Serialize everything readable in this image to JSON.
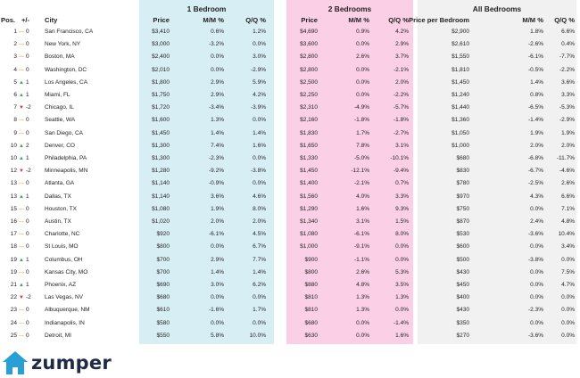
{
  "groups": {
    "one_bedroom": "1 Bedroom",
    "two_bedrooms": "2 Bedrooms",
    "all_bedrooms": "All Bedrooms"
  },
  "headers": {
    "pos": "Pos.",
    "change": "+/-",
    "city": "City",
    "b1_price": "Price",
    "b1_mm": "M/M %",
    "b1_qq": "Q/Q %",
    "b2_price": "Price",
    "b2_mm": "M/M %",
    "b2_qq": "Q/Q %",
    "all_price": "Price per Bedroom",
    "all_mm": "M/M %",
    "all_qq": "Q/Q %"
  },
  "colors": {
    "up": "#3aa756",
    "down": "#d3304d",
    "flat": "#e6a31e",
    "b1_bg": "#d8eef5",
    "b2_bg": "#fbd0e6",
    "all_bg": "#f1f1f1"
  },
  "logo": {
    "icon": "house-icon",
    "text": "zumper"
  },
  "rows": [
    {
      "pos": "1",
      "trend": "flat",
      "chg": "0",
      "city": "San Francisco, CA",
      "b1p": "$3,410",
      "b1m": "0.6%",
      "b1q": "1.2%",
      "b2p": "$4,690",
      "b2m": "0.9%",
      "b2q": "4.2%",
      "ap": "$2,900",
      "am": "1.8%",
      "aq": "6.6%"
    },
    {
      "pos": "2",
      "trend": "flat",
      "chg": "0",
      "city": "New York, NY",
      "b1p": "$3,000",
      "b1m": "-3.2%",
      "b1q": "0.0%",
      "b2p": "$3,600",
      "b2m": "0.0%",
      "b2q": "2.9%",
      "ap": "$2,610",
      "am": "-2.6%",
      "aq": "0.4%"
    },
    {
      "pos": "3",
      "trend": "flat",
      "chg": "0",
      "city": "Boston, MA",
      "b1p": "$2,400",
      "b1m": "0.0%",
      "b1q": "3.0%",
      "b2p": "$2,800",
      "b2m": "2.6%",
      "b2q": "3.7%",
      "ap": "$1,550",
      "am": "-6.1%",
      "aq": "-7.7%"
    },
    {
      "pos": "4",
      "trend": "flat",
      "chg": "0",
      "city": "Washington, DC",
      "b1p": "$2,010",
      "b1m": "0.0%",
      "b1q": "-2.9%",
      "b2p": "$2,800",
      "b2m": "0.0%",
      "b2q": "-2.1%",
      "ap": "$1,810",
      "am": "-0.5%",
      "aq": "-2.2%"
    },
    {
      "pos": "5",
      "trend": "up",
      "chg": "1",
      "city": "Los Angeles, CA",
      "b1p": "$1,800",
      "b1m": "2.9%",
      "b1q": "5.9%",
      "b2p": "$2,500",
      "b2m": "0.0%",
      "b2q": "2.0%",
      "ap": "$1,450",
      "am": "1.4%",
      "aq": "3.6%"
    },
    {
      "pos": "6",
      "trend": "up",
      "chg": "1",
      "city": "Miami, FL",
      "b1p": "$1,750",
      "b1m": "2.9%",
      "b1q": "4.2%",
      "b2p": "$2,250",
      "b2m": "0.0%",
      "b2q": "-2.2%",
      "ap": "$1,240",
      "am": "0.8%",
      "aq": "3.3%"
    },
    {
      "pos": "7",
      "trend": "down",
      "chg": "-2",
      "city": "Chicago, IL",
      "b1p": "$1,720",
      "b1m": "-3.4%",
      "b1q": "-3.9%",
      "b2p": "$2,310",
      "b2m": "-4.9%",
      "b2q": "-5.7%",
      "ap": "$1,440",
      "am": "-6.5%",
      "aq": "-5.3%"
    },
    {
      "pos": "8",
      "trend": "flat",
      "chg": "0",
      "city": "Seattle, WA",
      "b1p": "$1,600",
      "b1m": "1.3%",
      "b1q": "0.0%",
      "b2p": "$2,160",
      "b2m": "-1.8%",
      "b2q": "-1.8%",
      "ap": "$1,360",
      "am": "-1.4%",
      "aq": "-2.9%"
    },
    {
      "pos": "9",
      "trend": "flat",
      "chg": "0",
      "city": "San Diego, CA",
      "b1p": "$1,450",
      "b1m": "1.4%",
      "b1q": "1.4%",
      "b2p": "$1,830",
      "b2m": "1.7%",
      "b2q": "-2.7%",
      "ap": "$1,050",
      "am": "1.9%",
      "aq": "1.9%"
    },
    {
      "pos": "10",
      "trend": "up",
      "chg": "2",
      "city": "Denver, CO",
      "b1p": "$1,300",
      "b1m": "7.4%",
      "b1q": "1.6%",
      "b2p": "$1,650",
      "b2m": "7.8%",
      "b2q": "3.1%",
      "ap": "$1,000",
      "am": "2.0%",
      "aq": "2.0%"
    },
    {
      "pos": "10",
      "trend": "up",
      "chg": "1",
      "city": "Philadelphia, PA",
      "b1p": "$1,300",
      "b1m": "-2.3%",
      "b1q": "0.0%",
      "b2p": "$1,330",
      "b2m": "-5.0%",
      "b2q": "-10.1%",
      "ap": "$680",
      "am": "-6.8%",
      "aq": "-11.7%"
    },
    {
      "pos": "12",
      "trend": "down",
      "chg": "-2",
      "city": "Minneapolis, MN",
      "b1p": "$1,280",
      "b1m": "-9.2%",
      "b1q": "-3.8%",
      "b2p": "$1,450",
      "b2m": "-12.1%",
      "b2q": "-9.4%",
      "ap": "$830",
      "am": "-6.7%",
      "aq": "-4.6%"
    },
    {
      "pos": "13",
      "trend": "flat",
      "chg": "0",
      "city": "Atlanta, GA",
      "b1p": "$1,140",
      "b1m": "-0.9%",
      "b1q": "0.0%",
      "b2p": "$1,400",
      "b2m": "-2.1%",
      "b2q": "0.7%",
      "ap": "$780",
      "am": "-2.5%",
      "aq": "2.6%"
    },
    {
      "pos": "13",
      "trend": "up",
      "chg": "1",
      "city": "Dallas, TX",
      "b1p": "$1,140",
      "b1m": "3.6%",
      "b1q": "4.6%",
      "b2p": "$1,560",
      "b2m": "4.0%",
      "b2q": "3.3%",
      "ap": "$970",
      "am": "4.3%",
      "aq": "6.6%"
    },
    {
      "pos": "15",
      "trend": "flat",
      "chg": "0",
      "city": "Houston, TX",
      "b1p": "$1,080",
      "b1m": "1.9%",
      "b1q": "8.0%",
      "b2p": "$1,290",
      "b2m": "1.6%",
      "b2q": "9.3%",
      "ap": "$750",
      "am": "0.0%",
      "aq": "7.1%"
    },
    {
      "pos": "16",
      "trend": "flat",
      "chg": "0",
      "city": "Austin, TX",
      "b1p": "$1,020",
      "b1m": "2.0%",
      "b1q": "2.0%",
      "b2p": "$1,340",
      "b2m": "3.1%",
      "b2q": "1.5%",
      "ap": "$870",
      "am": "2.4%",
      "aq": "4.8%"
    },
    {
      "pos": "17",
      "trend": "flat",
      "chg": "0",
      "city": "Charlotte, NC",
      "b1p": "$920",
      "b1m": "-6.1%",
      "b1q": "4.5%",
      "b2p": "$1,080",
      "b2m": "-6.1%",
      "b2q": "8.0%",
      "ap": "$530",
      "am": "-3.6%",
      "aq": "10.4%"
    },
    {
      "pos": "18",
      "trend": "flat",
      "chg": "0",
      "city": "St Louis, MO",
      "b1p": "$800",
      "b1m": "0.0%",
      "b1q": "6.7%",
      "b2p": "$1,000",
      "b2m": "-9.1%",
      "b2q": "0.0%",
      "ap": "$600",
      "am": "0.0%",
      "aq": "3.4%"
    },
    {
      "pos": "19",
      "trend": "up",
      "chg": "1",
      "city": "Columbus, OH",
      "b1p": "$700",
      "b1m": "2.9%",
      "b1q": "7.7%",
      "b2p": "$900",
      "b2m": "-1.1%",
      "b2q": "0.0%",
      "ap": "$500",
      "am": "-3.8%",
      "aq": "0.0%"
    },
    {
      "pos": "19",
      "trend": "flat",
      "chg": "0",
      "city": "Kansas City, MO",
      "b1p": "$700",
      "b1m": "1.4%",
      "b1q": "1.4%",
      "b2p": "$800",
      "b2m": "2.6%",
      "b2q": "5.3%",
      "ap": "$430",
      "am": "0.0%",
      "aq": "7.5%"
    },
    {
      "pos": "21",
      "trend": "up",
      "chg": "1",
      "city": "Phoenix, AZ",
      "b1p": "$690",
      "b1m": "3.0%",
      "b1q": "6.2%",
      "b2p": "$880",
      "b2m": "4.8%",
      "b2q": "3.5%",
      "ap": "$450",
      "am": "0.0%",
      "aq": "4.7%"
    },
    {
      "pos": "22",
      "trend": "down",
      "chg": "-2",
      "city": "Las Vegas, NV",
      "b1p": "$680",
      "b1m": "0.0%",
      "b1q": "0.0%",
      "b2p": "$810",
      "b2m": "1.3%",
      "b2q": "1.3%",
      "ap": "$400",
      "am": "0.0%",
      "aq": "0.0%"
    },
    {
      "pos": "23",
      "trend": "flat",
      "chg": "0",
      "city": "Albuquerque, NM",
      "b1p": "$610",
      "b1m": "-1.6%",
      "b1q": "1.7%",
      "b2p": "$810",
      "b2m": "1.3%",
      "b2q": "0.0%",
      "ap": "$430",
      "am": "-2.3%",
      "aq": "0.0%"
    },
    {
      "pos": "24",
      "trend": "flat",
      "chg": "0",
      "city": "Indianapolis, IN",
      "b1p": "$580",
      "b1m": "0.0%",
      "b1q": "0.0%",
      "b2p": "$680",
      "b2m": "0.0%",
      "b2q": "-1.4%",
      "ap": "$350",
      "am": "0.0%",
      "aq": "0.0%"
    },
    {
      "pos": "25",
      "trend": "flat",
      "chg": "0",
      "city": "Detroit, MI",
      "b1p": "$550",
      "b1m": "5.8%",
      "b1q": "10.0%",
      "b2p": "$630",
      "b2m": "0.0%",
      "b2q": "1.6%",
      "ap": "$270",
      "am": "-3.6%",
      "aq": "0.0%"
    }
  ]
}
